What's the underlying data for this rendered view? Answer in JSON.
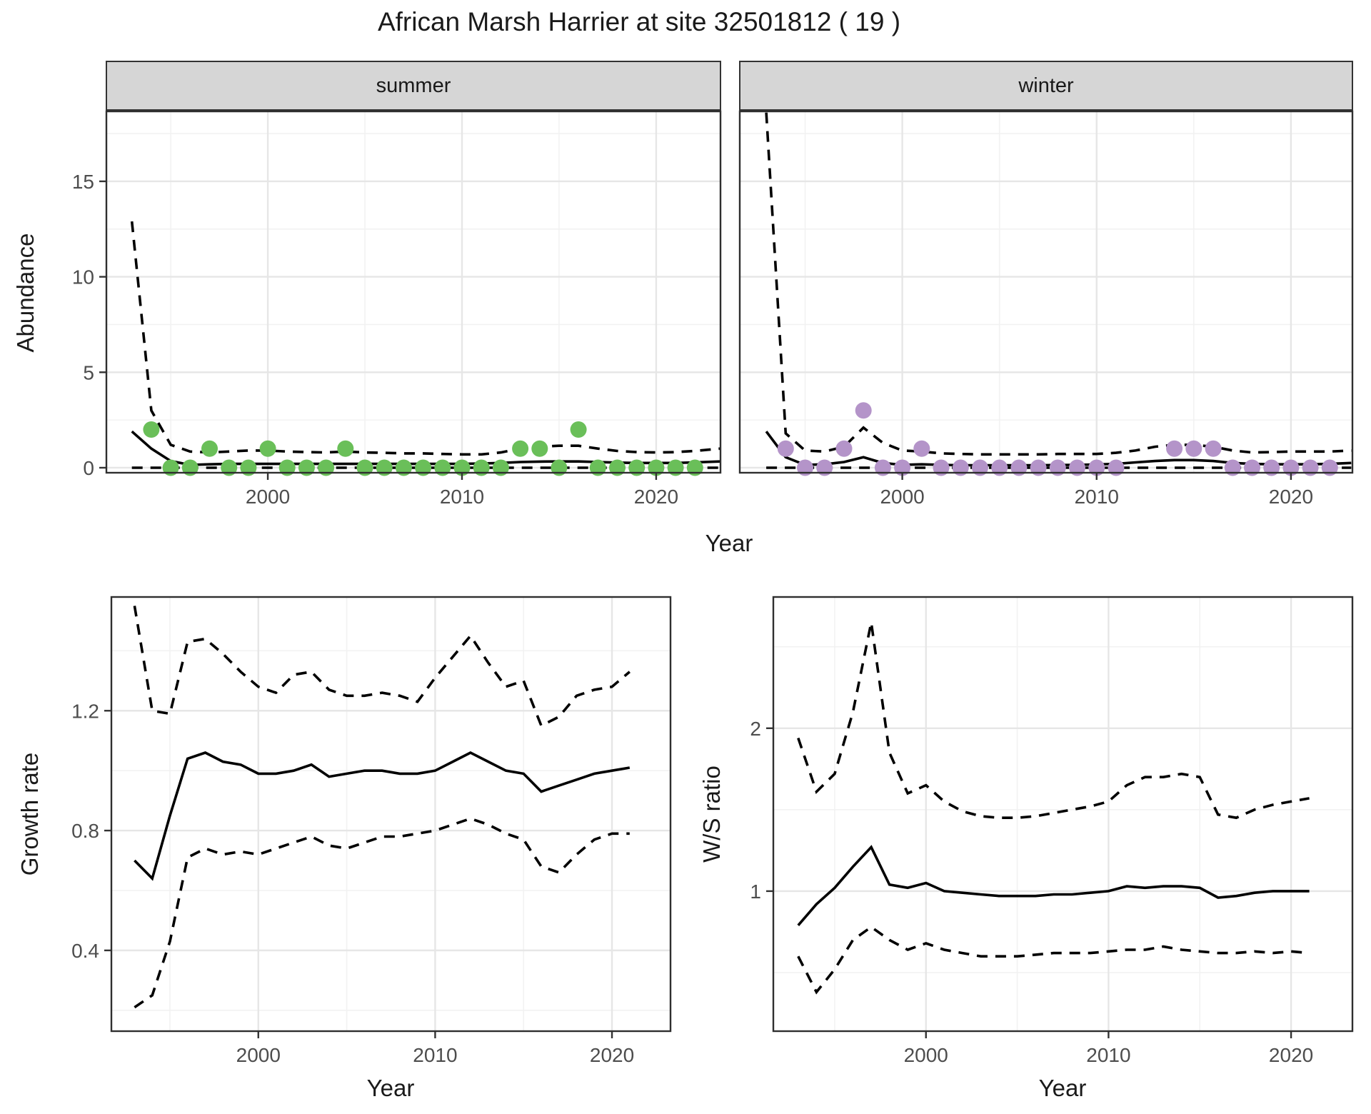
{
  "title": "African Marsh Harrier at site 32501812 ( 19 )",
  "axes": {
    "abundance_label": "Abundance",
    "year_label_top": "Year",
    "year_label_growth": "Year",
    "year_label_ws": "Year",
    "growth_label": "Growth rate",
    "ws_label": "W/S ratio"
  },
  "facets": {
    "summer_label": "summer",
    "winter_label": "winter"
  },
  "colors": {
    "summer_point": "#6abf59",
    "winter_point": "#b494c9",
    "line": "#000000",
    "strip_bg": "#d6d6d6",
    "panel_border": "#2f2f2f",
    "grid_major": "#e6e6e6",
    "grid_minor": "#f2f2f2",
    "tick_text": "#4d4d4d"
  },
  "chart_data": [
    {
      "id": "summer",
      "type": "line",
      "facet": "summer",
      "x_domain": [
        1991.65,
        2023.35
      ],
      "y_domain": [
        -0.3,
        18.7
      ],
      "x_ticks": [
        {
          "v": 2000,
          "t": "2000"
        },
        {
          "v": 2010,
          "t": "2010"
        },
        {
          "v": 2020,
          "t": "2020"
        }
      ],
      "x_minor": [
        1995,
        2005,
        2015
      ],
      "y_ticks": [
        {
          "v": 0,
          "t": "0"
        },
        {
          "v": 5,
          "t": "5"
        },
        {
          "v": 10,
          "t": "10"
        },
        {
          "v": 15,
          "t": "15"
        }
      ],
      "y_minor": [
        2.5,
        7.5,
        12.5,
        17.5
      ],
      "series": [
        {
          "name": "lower_ci",
          "style": "dashed",
          "x": [
            1993,
            2023.3
          ],
          "y": [
            0,
            0
          ]
        },
        {
          "name": "fit",
          "style": "solid",
          "x": [
            1993,
            1994,
            1995,
            1996,
            1997,
            1998,
            1999,
            2000,
            2001,
            2002,
            2003,
            2004,
            2005,
            2006,
            2007,
            2008,
            2009,
            2010,
            2011,
            2012,
            2013,
            2014,
            2015,
            2016,
            2017,
            2018,
            2019,
            2020,
            2021,
            2022,
            2023.3
          ],
          "y": [
            1.9,
            1.0,
            0.35,
            0.15,
            0.18,
            0.2,
            0.2,
            0.2,
            0.2,
            0.2,
            0.2,
            0.2,
            0.2,
            0.2,
            0.2,
            0.2,
            0.2,
            0.2,
            0.22,
            0.25,
            0.3,
            0.32,
            0.33,
            0.33,
            0.3,
            0.27,
            0.25,
            0.25,
            0.25,
            0.28,
            0.33
          ]
        },
        {
          "name": "upper_ci",
          "style": "dashed",
          "x": [
            1993,
            1994,
            1995,
            1996,
            1997,
            1998,
            1999,
            2000,
            2001,
            2002,
            2003,
            2004,
            2005,
            2006,
            2007,
            2008,
            2009,
            2010,
            2011,
            2012,
            2013,
            2014,
            2015,
            2016,
            2017,
            2018,
            2019,
            2020,
            2021,
            2022,
            2023.3
          ],
          "y": [
            12.9,
            3.0,
            1.2,
            0.85,
            0.8,
            0.85,
            0.9,
            0.9,
            0.85,
            0.82,
            0.8,
            0.85,
            0.8,
            0.78,
            0.75,
            0.75,
            0.72,
            0.7,
            0.7,
            0.8,
            1.0,
            1.1,
            1.15,
            1.15,
            1.0,
            0.88,
            0.82,
            0.8,
            0.82,
            0.88,
            1.0
          ]
        }
      ],
      "points": {
        "name": "observed_counts",
        "color": "#6abf59",
        "x": [
          1994,
          1995,
          1996,
          1997,
          1998,
          1999,
          2000,
          2001,
          2002,
          2003,
          2004,
          2005,
          2006,
          2007,
          2008,
          2009,
          2010,
          2011,
          2012,
          2013,
          2014,
          2015,
          2016,
          2017,
          2018,
          2019,
          2020,
          2021,
          2022
        ],
        "y": [
          2,
          0,
          0,
          1,
          0,
          0,
          1,
          0,
          0,
          0,
          1,
          0,
          0,
          0,
          0,
          0,
          0,
          0,
          0,
          1,
          1,
          0,
          2,
          0,
          0,
          0,
          0,
          0,
          0
        ]
      }
    },
    {
      "id": "winter",
      "type": "line",
      "facet": "winter",
      "x_domain": [
        1991.6,
        2023.2
      ],
      "y_domain": [
        -0.3,
        18.7
      ],
      "x_ticks": [
        {
          "v": 2000,
          "t": "2000"
        },
        {
          "v": 2010,
          "t": "2010"
        },
        {
          "v": 2020,
          "t": "2020"
        }
      ],
      "x_minor": [
        1995,
        2005,
        2015
      ],
      "y_ticks": [
        {
          "v": 0,
          "t": ""
        },
        {
          "v": 5,
          "t": ""
        },
        {
          "v": 10,
          "t": ""
        },
        {
          "v": 15,
          "t": ""
        }
      ],
      "y_minor": [
        2.5,
        7.5,
        12.5,
        17.5
      ],
      "series": [
        {
          "name": "lower_ci",
          "style": "dashed",
          "x": [
            1993,
            2023.1
          ],
          "y": [
            0,
            0
          ]
        },
        {
          "name": "fit",
          "style": "solid",
          "x": [
            1993,
            1994,
            1995,
            1996,
            1997,
            1998,
            1999,
            2000,
            2001,
            2002,
            2003,
            2004,
            2005,
            2006,
            2007,
            2008,
            2009,
            2010,
            2011,
            2012,
            2013,
            2014,
            2015,
            2016,
            2017,
            2018,
            2019,
            2020,
            2021,
            2022,
            2023.1
          ],
          "y": [
            1.9,
            0.55,
            0.15,
            0.18,
            0.3,
            0.55,
            0.25,
            0.15,
            0.18,
            0.15,
            0.13,
            0.13,
            0.13,
            0.13,
            0.13,
            0.14,
            0.15,
            0.17,
            0.2,
            0.28,
            0.35,
            0.4,
            0.4,
            0.35,
            0.25,
            0.2,
            0.18,
            0.18,
            0.18,
            0.2,
            0.25
          ]
        },
        {
          "name": "upper_ci",
          "style": "dashed",
          "x": [
            1993,
            1994,
            1995,
            1996,
            1997,
            1998,
            1999,
            2000,
            2001,
            2002,
            2003,
            2004,
            2005,
            2006,
            2007,
            2008,
            2009,
            2010,
            2011,
            2012,
            2013,
            2014,
            2015,
            2016,
            2017,
            2018,
            2019,
            2020,
            2021,
            2022,
            2023.1
          ],
          "y": [
            18.6,
            1.8,
            0.9,
            0.85,
            1.1,
            2.1,
            1.3,
            0.9,
            0.85,
            0.75,
            0.72,
            0.7,
            0.7,
            0.7,
            0.7,
            0.72,
            0.72,
            0.72,
            0.78,
            0.9,
            1.1,
            1.2,
            1.2,
            1.1,
            0.9,
            0.8,
            0.82,
            0.85,
            0.85,
            0.85,
            0.9
          ]
        }
      ],
      "points": {
        "name": "observed_counts",
        "color": "#b494c9",
        "x": [
          1994,
          1995,
          1996,
          1997,
          1998,
          1999,
          2000,
          2001,
          2002,
          2003,
          2004,
          2005,
          2006,
          2007,
          2008,
          2009,
          2010,
          2011,
          2014,
          2015,
          2016,
          2017,
          2018,
          2019,
          2020,
          2021,
          2022
        ],
        "y": [
          1,
          0,
          0,
          1,
          3,
          0,
          0,
          1,
          0,
          0,
          0,
          0,
          0,
          0,
          0,
          0,
          0,
          0,
          1,
          1,
          1,
          0,
          0,
          0,
          0,
          0,
          0
        ]
      }
    },
    {
      "id": "growth",
      "type": "line",
      "x_domain": [
        1991.65,
        2023.35
      ],
      "y_domain": [
        0.128,
        1.582
      ],
      "x_ticks": [
        {
          "v": 2000,
          "t": "2000"
        },
        {
          "v": 2010,
          "t": "2010"
        },
        {
          "v": 2020,
          "t": "2020"
        }
      ],
      "x_minor": [
        1995,
        2005,
        2015
      ],
      "y_ticks": [
        {
          "v": 0.4,
          "t": "0.4"
        },
        {
          "v": 0.8,
          "t": "0.8"
        },
        {
          "v": 1.2,
          "t": "1.2"
        }
      ],
      "y_minor": [
        0.2,
        0.6,
        1.0,
        1.4
      ],
      "series": [
        {
          "name": "lower_ci",
          "style": "dashed",
          "x": [
            1993,
            1994,
            1995,
            1996,
            1997,
            1998,
            1999,
            2000,
            2001,
            2002,
            2003,
            2004,
            2005,
            2006,
            2007,
            2008,
            2009,
            2010,
            2011,
            2012,
            2013,
            2014,
            2015,
            2016,
            2017,
            2018,
            2019,
            2020,
            2021
          ],
          "y": [
            0.21,
            0.25,
            0.43,
            0.71,
            0.74,
            0.72,
            0.73,
            0.72,
            0.74,
            0.76,
            0.78,
            0.75,
            0.74,
            0.76,
            0.78,
            0.78,
            0.79,
            0.8,
            0.82,
            0.84,
            0.82,
            0.79,
            0.77,
            0.68,
            0.66,
            0.72,
            0.77,
            0.79,
            0.79
          ]
        },
        {
          "name": "fit",
          "style": "solid",
          "x": [
            1993,
            1994,
            1995,
            1996,
            1997,
            1998,
            1999,
            2000,
            2001,
            2002,
            2003,
            2004,
            2005,
            2006,
            2007,
            2008,
            2009,
            2010,
            2011,
            2012,
            2013,
            2014,
            2015,
            2016,
            2017,
            2018,
            2019,
            2020,
            2021
          ],
          "y": [
            0.7,
            0.64,
            0.85,
            1.04,
            1.06,
            1.03,
            1.02,
            0.99,
            0.99,
            1.0,
            1.02,
            0.98,
            0.99,
            1.0,
            1.0,
            0.99,
            0.99,
            1.0,
            1.03,
            1.06,
            1.03,
            1.0,
            0.99,
            0.93,
            0.95,
            0.97,
            0.99,
            1.0,
            1.01
          ]
        },
        {
          "name": "upper_ci",
          "style": "dashed",
          "x": [
            1993,
            1994,
            1995,
            1996,
            1997,
            1998,
            1999,
            2000,
            2001,
            2002,
            2003,
            2004,
            2005,
            2006,
            2007,
            2008,
            2009,
            2010,
            2011,
            2012,
            2013,
            2014,
            2015,
            2016,
            2017,
            2018,
            2019,
            2020,
            2021
          ],
          "y": [
            1.55,
            1.2,
            1.19,
            1.43,
            1.44,
            1.39,
            1.33,
            1.28,
            1.26,
            1.32,
            1.33,
            1.27,
            1.25,
            1.25,
            1.26,
            1.25,
            1.23,
            1.31,
            1.38,
            1.45,
            1.36,
            1.28,
            1.3,
            1.15,
            1.18,
            1.25,
            1.27,
            1.28,
            1.33
          ]
        }
      ]
    },
    {
      "id": "ws",
      "type": "line",
      "x_domain": [
        1991.6,
        2023.4
      ],
      "y_domain": [
        0.136,
        2.81
      ],
      "x_ticks": [
        {
          "v": 2000,
          "t": "2000"
        },
        {
          "v": 2010,
          "t": "2010"
        },
        {
          "v": 2020,
          "t": "2020"
        }
      ],
      "x_minor": [
        1995,
        2005,
        2015
      ],
      "y_ticks": [
        {
          "v": 1,
          "t": "1"
        },
        {
          "v": 2,
          "t": "2"
        }
      ],
      "y_minor": [
        0.5,
        1.5,
        2.5
      ],
      "series": [
        {
          "name": "lower_ci",
          "style": "dashed",
          "x": [
            1993,
            1994,
            1995,
            1996,
            1997,
            1998,
            1999,
            2000,
            2001,
            2002,
            2003,
            2004,
            2005,
            2006,
            2007,
            2008,
            2009,
            2010,
            2011,
            2012,
            2013,
            2014,
            2015,
            2016,
            2017,
            2018,
            2019,
            2020,
            2021
          ],
          "y": [
            0.6,
            0.38,
            0.52,
            0.7,
            0.78,
            0.7,
            0.64,
            0.68,
            0.64,
            0.62,
            0.6,
            0.6,
            0.6,
            0.61,
            0.62,
            0.62,
            0.62,
            0.63,
            0.64,
            0.64,
            0.66,
            0.64,
            0.63,
            0.62,
            0.62,
            0.63,
            0.62,
            0.63,
            0.62
          ]
        },
        {
          "name": "fit",
          "style": "solid",
          "x": [
            1993,
            1994,
            1995,
            1996,
            1997,
            1998,
            1999,
            2000,
            2001,
            2002,
            2003,
            2004,
            2005,
            2006,
            2007,
            2008,
            2009,
            2010,
            2011,
            2012,
            2013,
            2014,
            2015,
            2016,
            2017,
            2018,
            2019,
            2020,
            2021
          ],
          "y": [
            0.79,
            0.92,
            1.02,
            1.15,
            1.27,
            1.04,
            1.02,
            1.05,
            1.0,
            0.99,
            0.98,
            0.97,
            0.97,
            0.97,
            0.98,
            0.98,
            0.99,
            1.0,
            1.03,
            1.02,
            1.03,
            1.03,
            1.02,
            0.96,
            0.97,
            0.99,
            1.0,
            1.0,
            1.0
          ]
        },
        {
          "name": "upper_ci",
          "style": "dashed",
          "x": [
            1993,
            1994,
            1995,
            1996,
            1997,
            1998,
            1999,
            2000,
            2001,
            2002,
            2003,
            2004,
            2005,
            2006,
            2007,
            2008,
            2009,
            2010,
            2011,
            2012,
            2013,
            2014,
            2015,
            2016,
            2017,
            2018,
            2019,
            2020,
            2021
          ],
          "y": [
            1.94,
            1.61,
            1.72,
            2.1,
            2.65,
            1.85,
            1.6,
            1.65,
            1.55,
            1.49,
            1.46,
            1.45,
            1.45,
            1.46,
            1.48,
            1.5,
            1.52,
            1.55,
            1.65,
            1.7,
            1.7,
            1.72,
            1.7,
            1.47,
            1.45,
            1.5,
            1.53,
            1.55,
            1.57
          ]
        }
      ]
    }
  ],
  "layout_note": "faceted abundance plots (top) and growth rate / W-S ratio plots (bottom)"
}
